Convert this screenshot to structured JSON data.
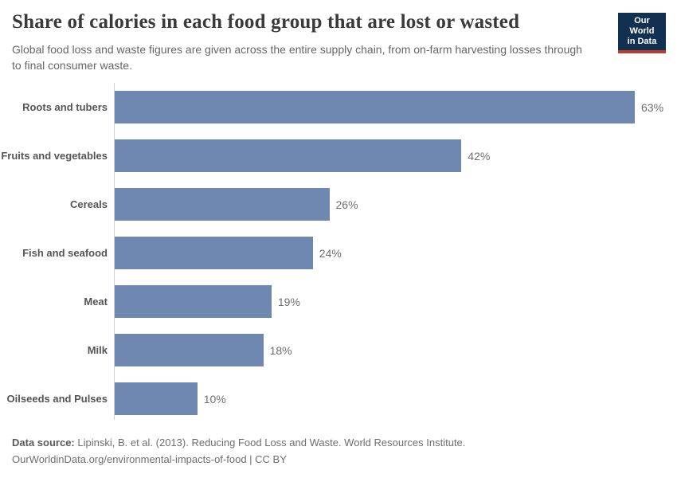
{
  "header": {
    "title": "Share of calories in each food group that are lost or wasted",
    "subtitle": "Global food loss and waste figures are given across the entire supply chain, from on-farm harvesting losses through to final consumer waste.",
    "logo": {
      "line1": "Our World",
      "line2": "in Data"
    }
  },
  "chart_data": {
    "type": "bar",
    "orientation": "horizontal",
    "title": "Share of calories in each food group that are lost or wasted",
    "categories": [
      "Roots and tubers",
      "Fruits and vegetables",
      "Cereals",
      "Fish and seafood",
      "Meat",
      "Milk",
      "Oilseeds and Pulses"
    ],
    "values": [
      63,
      42,
      26,
      24,
      19,
      18,
      10
    ],
    "value_labels": [
      "63%",
      "42%",
      "26%",
      "24%",
      "19%",
      "18%",
      "10%"
    ],
    "unit": "%",
    "xlim": [
      0,
      63
    ],
    "grid": false,
    "legend": "none",
    "bar_color": "#6e88b2"
  },
  "footer": {
    "source_label": "Data source:",
    "source_text": "Lipinski, B. et al. (2013). Reducing Food Loss and Waste. World Resources Institute.",
    "link_line": "OurWorldinData.org/environmental-impacts-of-food | CC BY"
  },
  "colors": {
    "bar": "#6e88b2",
    "axis_line": "#cfcfcf",
    "title_text": "#3a3a3a",
    "subtitle_text": "#666666",
    "category_label": "#555555",
    "value_label": "#6e6e6e",
    "logo_background": "#12304f",
    "logo_accent": "#bc3a31"
  }
}
